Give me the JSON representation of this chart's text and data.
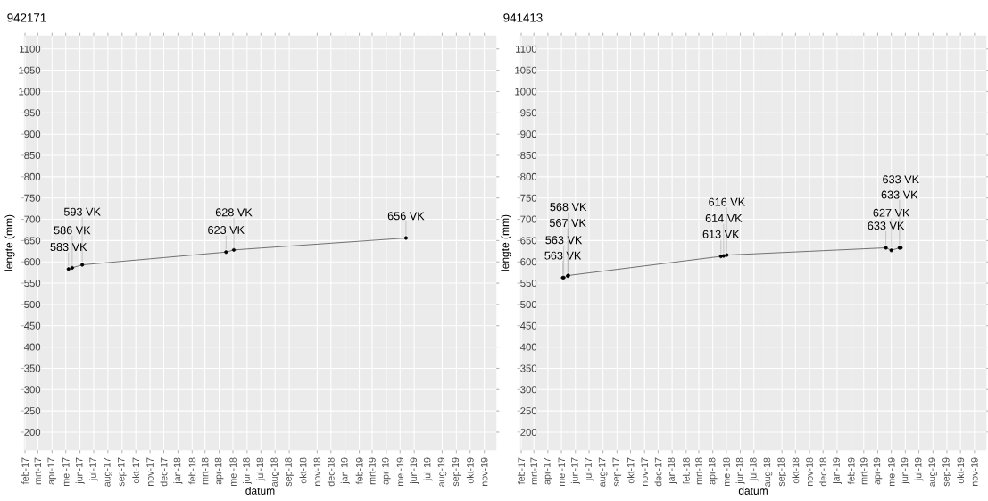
{
  "chart_data": [
    {
      "type": "line",
      "title": "942171",
      "xlabel": "datum",
      "ylabel": "lengte (mm)",
      "color": "#333333",
      "marker": "circle",
      "grid": true,
      "x": [
        "2017-05-07",
        "2017-05-15",
        "2017-06-06",
        "2018-04-16",
        "2018-05-03",
        "2019-05-14"
      ],
      "values": [
        583,
        586,
        593,
        623,
        628,
        656
      ],
      "value_labels": [
        "583 VK",
        "586 VK",
        "593 VK",
        "623 VK",
        "628 VK",
        "656 VK"
      ],
      "xlim": [
        "2017-01-30",
        "2019-11-27"
      ],
      "ylim": [
        158,
        1131
      ],
      "xticks": [
        {
          "value": "2017-02-01",
          "label": "feb-17"
        },
        {
          "value": "2017-03-01",
          "label": "mrt-17"
        },
        {
          "value": "2017-04-01",
          "label": "apr-17"
        },
        {
          "value": "2017-05-01",
          "label": "mei-17"
        },
        {
          "value": "2017-06-01",
          "label": "jun-17"
        },
        {
          "value": "2017-07-01",
          "label": "jul-17"
        },
        {
          "value": "2017-08-01",
          "label": "aug-17"
        },
        {
          "value": "2017-09-01",
          "label": "sep-17"
        },
        {
          "value": "2017-10-01",
          "label": "okt-17"
        },
        {
          "value": "2017-11-01",
          "label": "nov-17"
        },
        {
          "value": "2017-12-01",
          "label": "dec-17"
        },
        {
          "value": "2018-01-01",
          "label": "jan-18"
        },
        {
          "value": "2018-02-01",
          "label": "feb-18"
        },
        {
          "value": "2018-03-01",
          "label": "mrt-18"
        },
        {
          "value": "2018-04-01",
          "label": "apr-18"
        },
        {
          "value": "2018-05-01",
          "label": "mei-18"
        },
        {
          "value": "2018-06-01",
          "label": "jun-18"
        },
        {
          "value": "2018-07-01",
          "label": "jul-18"
        },
        {
          "value": "2018-08-01",
          "label": "aug-18"
        },
        {
          "value": "2018-09-01",
          "label": "sep-18"
        },
        {
          "value": "2018-10-01",
          "label": "okt-18"
        },
        {
          "value": "2018-11-01",
          "label": "nov-18"
        },
        {
          "value": "2018-12-01",
          "label": "dec-18"
        },
        {
          "value": "2019-01-01",
          "label": "jan-19"
        },
        {
          "value": "2019-02-01",
          "label": "feb-19"
        },
        {
          "value": "2019-03-01",
          "label": "mrt-19"
        },
        {
          "value": "2019-04-01",
          "label": "apr-19"
        },
        {
          "value": "2019-05-01",
          "label": "mei-19"
        },
        {
          "value": "2019-06-01",
          "label": "jun-19"
        },
        {
          "value": "2019-07-01",
          "label": "jul-19"
        },
        {
          "value": "2019-08-01",
          "label": "aug-19"
        },
        {
          "value": "2019-09-01",
          "label": "sep-19"
        },
        {
          "value": "2019-10-01",
          "label": "okt-19"
        },
        {
          "value": "2019-11-01",
          "label": "nov-19"
        }
      ],
      "yticks": [
        200,
        250,
        300,
        350,
        400,
        450,
        500,
        550,
        600,
        650,
        700,
        750,
        800,
        850,
        900,
        950,
        1000,
        1050,
        1100
      ]
    },
    {
      "type": "line",
      "title": "941413",
      "xlabel": "datum",
      "ylabel": "lengte (mm)",
      "color": "#333333",
      "marker": "circle",
      "grid": true,
      "x": [
        "2017-05-04",
        "2017-05-06",
        "2017-05-15",
        "2017-05-16",
        "2018-04-19",
        "2018-04-25",
        "2018-05-02",
        "2019-04-19",
        "2019-05-01",
        "2019-05-19",
        "2019-05-22"
      ],
      "values": [
        563,
        563,
        567,
        568,
        613,
        614,
        616,
        633,
        627,
        633,
        633
      ],
      "value_labels": [
        "563 VK",
        "563 VK",
        "567 VK",
        "568 VK",
        "613 VK",
        "614 VK",
        "616 VK",
        "633 VK",
        "627 VK",
        "633 VK",
        "633 VK"
      ],
      "xlim": [
        "2017-01-30",
        "2019-11-27"
      ],
      "ylim": [
        158,
        1131
      ],
      "xticks": [
        {
          "value": "2017-02-01",
          "label": "feb-17"
        },
        {
          "value": "2017-03-01",
          "label": "mrt-17"
        },
        {
          "value": "2017-04-01",
          "label": "apr-17"
        },
        {
          "value": "2017-05-01",
          "label": "mei-17"
        },
        {
          "value": "2017-06-01",
          "label": "jun-17"
        },
        {
          "value": "2017-07-01",
          "label": "jul-17"
        },
        {
          "value": "2017-08-01",
          "label": "aug-17"
        },
        {
          "value": "2017-09-01",
          "label": "sep-17"
        },
        {
          "value": "2017-10-01",
          "label": "okt-17"
        },
        {
          "value": "2017-11-01",
          "label": "nov-17"
        },
        {
          "value": "2017-12-01",
          "label": "dec-17"
        },
        {
          "value": "2018-01-01",
          "label": "jan-18"
        },
        {
          "value": "2018-02-01",
          "label": "feb-18"
        },
        {
          "value": "2018-03-01",
          "label": "mrt-18"
        },
        {
          "value": "2018-04-01",
          "label": "apr-18"
        },
        {
          "value": "2018-05-01",
          "label": "mei-18"
        },
        {
          "value": "2018-06-01",
          "label": "jun-18"
        },
        {
          "value": "2018-07-01",
          "label": "jul-18"
        },
        {
          "value": "2018-08-01",
          "label": "aug-18"
        },
        {
          "value": "2018-09-01",
          "label": "sep-18"
        },
        {
          "value": "2018-10-01",
          "label": "okt-18"
        },
        {
          "value": "2018-11-01",
          "label": "nov-18"
        },
        {
          "value": "2018-12-01",
          "label": "dec-18"
        },
        {
          "value": "2019-01-01",
          "label": "jan-19"
        },
        {
          "value": "2019-02-01",
          "label": "feb-19"
        },
        {
          "value": "2019-03-01",
          "label": "mrt-19"
        },
        {
          "value": "2019-04-01",
          "label": "apr-19"
        },
        {
          "value": "2019-05-01",
          "label": "mei-19"
        },
        {
          "value": "2019-06-01",
          "label": "jun-19"
        },
        {
          "value": "2019-07-01",
          "label": "jul-19"
        },
        {
          "value": "2019-08-01",
          "label": "aug-19"
        },
        {
          "value": "2019-09-01",
          "label": "sep-19"
        },
        {
          "value": "2019-10-01",
          "label": "okt-19"
        },
        {
          "value": "2019-11-01",
          "label": "nov-19"
        }
      ],
      "yticks": [
        200,
        250,
        300,
        350,
        400,
        450,
        500,
        550,
        600,
        650,
        700,
        750,
        800,
        850,
        900,
        950,
        1000,
        1050,
        1100
      ]
    }
  ]
}
